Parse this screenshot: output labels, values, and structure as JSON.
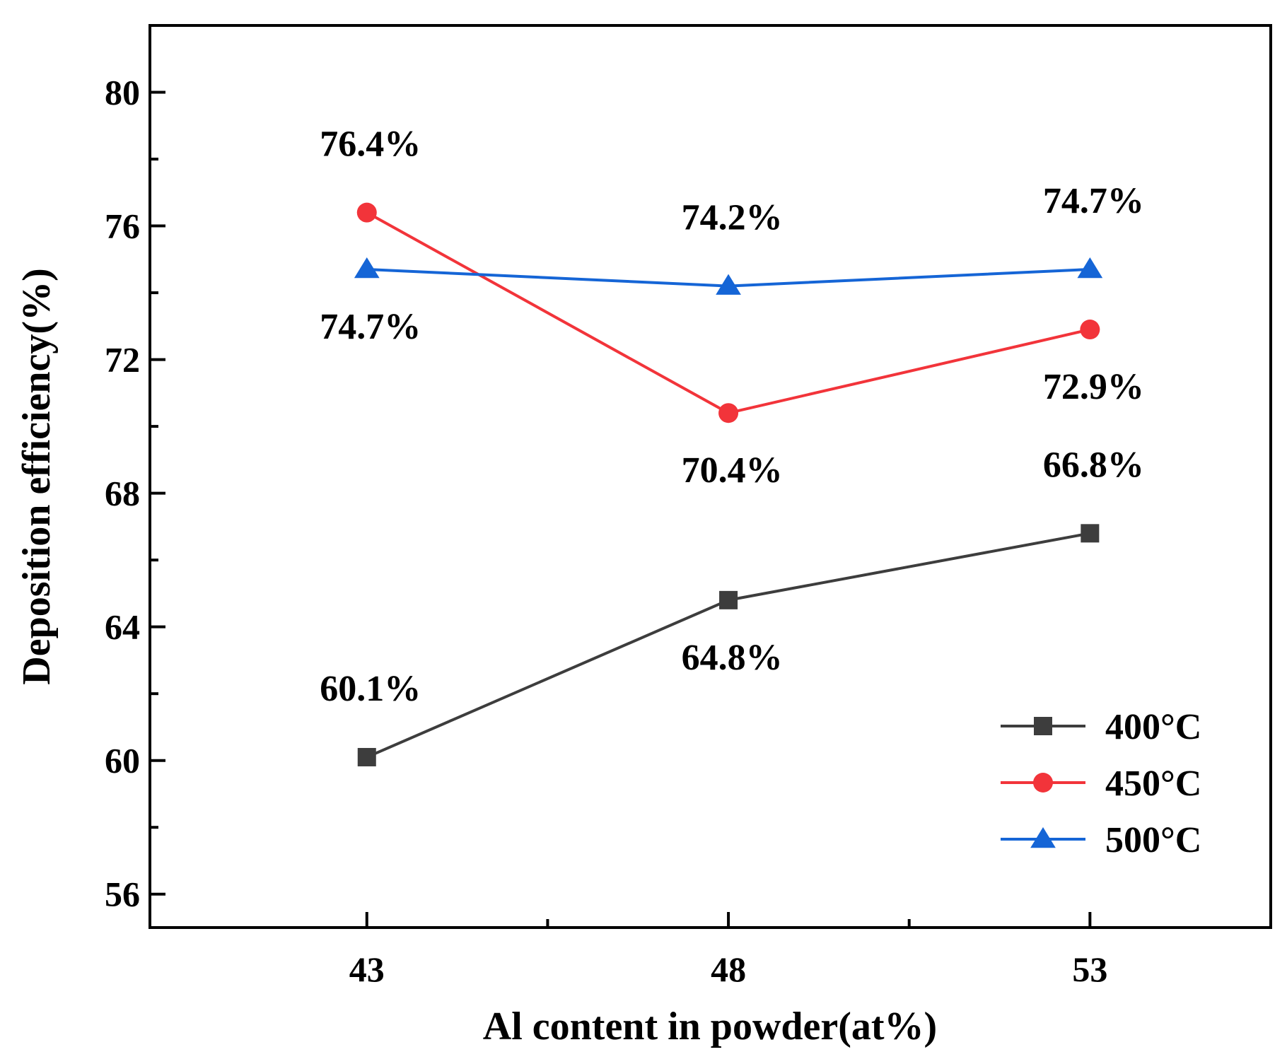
{
  "chart_data": {
    "type": "line",
    "title": "",
    "xlabel": "Al content in powder(at%)",
    "ylabel": "Deposition efficiency(%)",
    "x": [
      43,
      48,
      53
    ],
    "x_tick_labels": [
      "43",
      "48",
      "53"
    ],
    "xlim": [
      40,
      55.5
    ],
    "ylim": [
      55,
      82
    ],
    "y_ticks": [
      56,
      60,
      64,
      68,
      72,
      76,
      80
    ],
    "y_tick_labels": [
      "56",
      "60",
      "64",
      "68",
      "72",
      "76",
      "80"
    ],
    "grid": false,
    "legend_position": "bottom-right",
    "series": [
      {
        "name": "400°C",
        "marker": "square",
        "color": "#3d3d3d",
        "values": [
          60.1,
          64.8,
          66.8
        ],
        "labels": [
          "60.1%",
          "64.8%",
          "66.8%"
        ],
        "label_positions": [
          "above",
          "below",
          "above"
        ]
      },
      {
        "name": "450°C",
        "marker": "circle",
        "color": "#f2343a",
        "values": [
          76.4,
          70.4,
          72.9
        ],
        "labels": [
          "76.4%",
          "70.4%",
          "72.9%"
        ],
        "label_positions": [
          "above",
          "below",
          "below"
        ]
      },
      {
        "name": "500°C",
        "marker": "triangle",
        "color": "#1565d6",
        "values": [
          74.7,
          74.2,
          74.7
        ],
        "labels": [
          "74.7%",
          "74.2%",
          "74.7%"
        ],
        "label_positions": [
          "below",
          "above",
          "above"
        ]
      }
    ]
  }
}
